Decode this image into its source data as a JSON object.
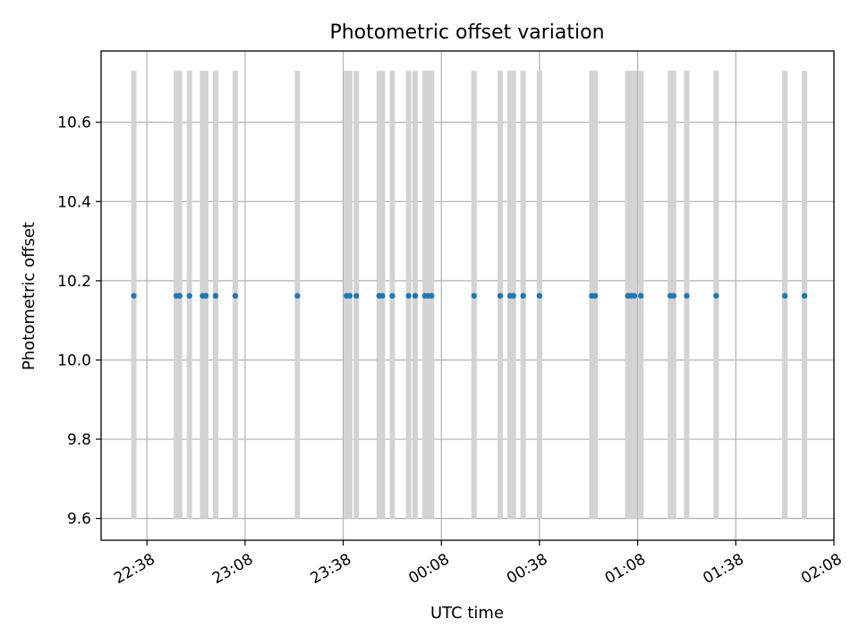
{
  "chart_data": {
    "type": "scatter",
    "title": "Photometric offset variation",
    "xlabel": "UTC time",
    "ylabel": "Photometric offset",
    "x_ticks": [
      "22:38",
      "23:08",
      "23:38",
      "00:08",
      "00:38",
      "01:08",
      "01:38",
      "02:08"
    ],
    "y_ticks": [
      "9.6",
      "9.8",
      "10.0",
      "10.2",
      "10.4",
      "10.6"
    ],
    "xlim": [
      "22:24",
      "02:08"
    ],
    "ylim": [
      9.545,
      10.78
    ],
    "grid": true,
    "colors": {
      "points": "#1f77b4",
      "bands": "#d3d3d3",
      "grid": "#b0b0b0"
    },
    "band_range": [
      9.6,
      10.73
    ],
    "series": [
      {
        "values": [
          {
            "x": "22:34",
            "y": 10.162
          },
          {
            "x": "22:47",
            "y": 10.162
          },
          {
            "x": "22:48",
            "y": 10.162
          },
          {
            "x": "22:51",
            "y": 10.162
          },
          {
            "x": "22:55",
            "y": 10.162
          },
          {
            "x": "22:56",
            "y": 10.162
          },
          {
            "x": "22:59",
            "y": 10.162
          },
          {
            "x": "23:05",
            "y": 10.162
          },
          {
            "x": "23:24",
            "y": 10.162
          },
          {
            "x": "23:39",
            "y": 10.162
          },
          {
            "x": "23:40",
            "y": 10.162
          },
          {
            "x": "23:42",
            "y": 10.162
          },
          {
            "x": "23:49",
            "y": 10.162
          },
          {
            "x": "23:50",
            "y": 10.162
          },
          {
            "x": "23:53",
            "y": 10.162
          },
          {
            "x": "23:58",
            "y": 10.162
          },
          {
            "x": "00:00",
            "y": 10.162
          },
          {
            "x": "00:03",
            "y": 10.162
          },
          {
            "x": "00:04",
            "y": 10.162
          },
          {
            "x": "00:05",
            "y": 10.162
          },
          {
            "x": "00:18",
            "y": 10.162
          },
          {
            "x": "00:26",
            "y": 10.162
          },
          {
            "x": "00:29",
            "y": 10.162
          },
          {
            "x": "00:30",
            "y": 10.162
          },
          {
            "x": "00:33",
            "y": 10.162
          },
          {
            "x": "00:38",
            "y": 10.162
          },
          {
            "x": "00:54",
            "y": 10.162
          },
          {
            "x": "00:55",
            "y": 10.162
          },
          {
            "x": "01:05",
            "y": 10.162
          },
          {
            "x": "01:06",
            "y": 10.162
          },
          {
            "x": "01:07",
            "y": 10.162
          },
          {
            "x": "01:09",
            "y": 10.162
          },
          {
            "x": "01:18",
            "y": 10.162
          },
          {
            "x": "01:19",
            "y": 10.162
          },
          {
            "x": "01:23",
            "y": 10.162
          },
          {
            "x": "01:32",
            "y": 10.162
          },
          {
            "x": "01:53",
            "y": 10.162
          },
          {
            "x": "01:59",
            "y": 10.162
          }
        ]
      }
    ]
  }
}
